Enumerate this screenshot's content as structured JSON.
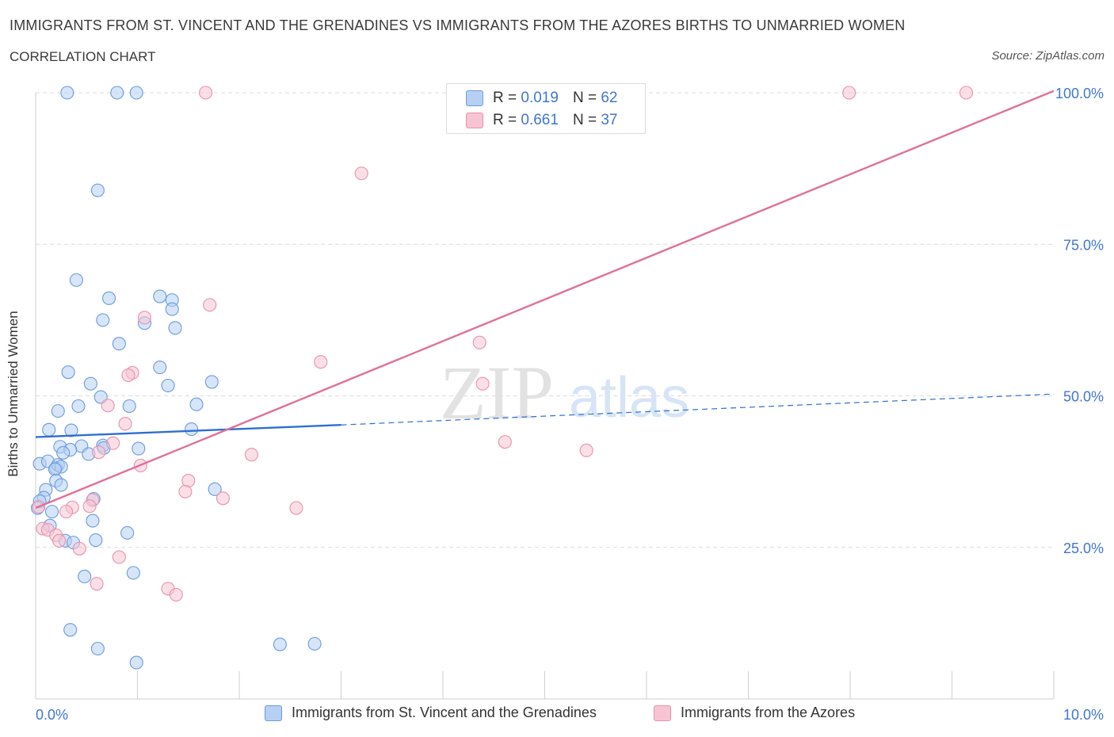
{
  "header": {
    "title": "IMMIGRANTS FROM ST. VINCENT AND THE GRENADINES VS IMMIGRANTS FROM THE AZORES BIRTHS TO UNMARRIED WOMEN",
    "subtitle": "CORRELATION CHART",
    "source": "Source: ZipAtlas.com"
  },
  "colors": {
    "blue_fill": "#b5d0f3",
    "blue_stroke": "#6a9bdc",
    "blue_line": "#2e6fd0",
    "pink_fill": "#f7c4d4",
    "pink_stroke": "#e891ad",
    "pink_line": "#e07098",
    "tick_label": "#3f76d2",
    "grid": "#dcdcdc"
  },
  "legend": {
    "series1": {
      "r_label": "R =",
      "r_value": "0.019",
      "n_label": "N =",
      "n_value": "62"
    },
    "series2": {
      "r_label": "R =",
      "r_value": "0.661",
      "n_label": "N =",
      "n_value": "37"
    }
  },
  "watermark": {
    "zip": "ZIP",
    "atlas": "atlas"
  },
  "chart_data": {
    "type": "scatter",
    "title": "IMMIGRANTS FROM ST. VINCENT AND THE GRENADINES VS IMMIGRANTS FROM THE AZORES BIRTHS TO UNMARRIED WOMEN",
    "xlabel": "",
    "ylabel": "Births to Unmarried Women",
    "xlim": [
      0,
      10
    ],
    "ylim": [
      0,
      100
    ],
    "x_tick_labels": [
      "0.0%",
      "10.0%"
    ],
    "y_tick_values": [
      25,
      50,
      75,
      100
    ],
    "y_tick_labels": [
      "25.0%",
      "50.0%",
      "75.0%",
      "100.0%"
    ],
    "grid": true,
    "series": [
      {
        "name": "Immigrants from St. Vincent and the Grenadines",
        "color": "#6a9bdc",
        "trend": {
          "x0": 0,
          "y0": 43.2,
          "x1": 3.0,
          "y1": 45.2,
          "dashed_to_x": 10,
          "dashed_to_y": 50.3
        },
        "points": [
          [
            0.31,
            100
          ],
          [
            0.8,
            100
          ],
          [
            0.99,
            100
          ],
          [
            0.61,
            83.9
          ],
          [
            0.4,
            69.1
          ],
          [
            0.72,
            66.1
          ],
          [
            1.22,
            66.4
          ],
          [
            1.34,
            65.8
          ],
          [
            0.66,
            62.5
          ],
          [
            1.07,
            62.0
          ],
          [
            1.34,
            64.3
          ],
          [
            1.37,
            61.2
          ],
          [
            0.82,
            58.6
          ],
          [
            0.32,
            53.9
          ],
          [
            1.22,
            54.7
          ],
          [
            0.54,
            52.0
          ],
          [
            1.3,
            51.7
          ],
          [
            1.73,
            52.3
          ],
          [
            0.64,
            49.8
          ],
          [
            0.42,
            48.3
          ],
          [
            0.92,
            48.3
          ],
          [
            1.58,
            48.6
          ],
          [
            0.22,
            47.5
          ],
          [
            0.13,
            44.4
          ],
          [
            0.35,
            44.3
          ],
          [
            1.53,
            44.5
          ],
          [
            0.24,
            41.6
          ],
          [
            0.45,
            41.7
          ],
          [
            0.34,
            41.1
          ],
          [
            0.66,
            41.8
          ],
          [
            0.67,
            41.4
          ],
          [
            1.01,
            41.3
          ],
          [
            0.52,
            40.4
          ],
          [
            0.27,
            40.6
          ],
          [
            0.04,
            38.8
          ],
          [
            0.12,
            39.2
          ],
          [
            0.2,
            38.1
          ],
          [
            0.22,
            38.6
          ],
          [
            0.25,
            38.3
          ],
          [
            0.19,
            37.9
          ],
          [
            0.2,
            36.0
          ],
          [
            0.25,
            35.3
          ],
          [
            0.1,
            34.5
          ],
          [
            0.08,
            33.2
          ],
          [
            1.76,
            34.6
          ],
          [
            0.57,
            33.0
          ],
          [
            0.04,
            32.6
          ],
          [
            0.16,
            30.9
          ],
          [
            0.56,
            29.4
          ],
          [
            0.14,
            28.6
          ],
          [
            0.9,
            27.4
          ],
          [
            0.29,
            26.1
          ],
          [
            0.37,
            25.8
          ],
          [
            0.59,
            26.2
          ],
          [
            0.48,
            20.2
          ],
          [
            0.96,
            20.8
          ],
          [
            0.34,
            11.4
          ],
          [
            0.61,
            8.3
          ],
          [
            0.99,
            6.0
          ],
          [
            2.4,
            9.0
          ],
          [
            2.74,
            9.1
          ],
          [
            0.02,
            31.5
          ]
        ]
      },
      {
        "name": "Immigrants from the Azores",
        "color": "#e891ad",
        "trend": {
          "x0": 0,
          "y0": 31.5,
          "x1": 10,
          "y1": 100.3
        },
        "points": [
          [
            1.67,
            100
          ],
          [
            7.99,
            100
          ],
          [
            9.14,
            100
          ],
          [
            3.2,
            86.7
          ],
          [
            1.71,
            65.0
          ],
          [
            1.07,
            62.9
          ],
          [
            4.36,
            58.8
          ],
          [
            2.8,
            55.6
          ],
          [
            0.95,
            53.8
          ],
          [
            0.91,
            53.4
          ],
          [
            4.39,
            52.0
          ],
          [
            0.71,
            48.4
          ],
          [
            0.88,
            45.4
          ],
          [
            0.76,
            42.2
          ],
          [
            4.61,
            42.4
          ],
          [
            5.41,
            41.0
          ],
          [
            0.62,
            40.7
          ],
          [
            2.12,
            40.3
          ],
          [
            1.03,
            38.5
          ],
          [
            1.5,
            36.0
          ],
          [
            1.47,
            34.2
          ],
          [
            1.84,
            33.1
          ],
          [
            0.56,
            32.8
          ],
          [
            0.53,
            31.8
          ],
          [
            0.36,
            31.6
          ],
          [
            2.56,
            31.5
          ],
          [
            0.3,
            30.9
          ],
          [
            0.03,
            31.7
          ],
          [
            0.07,
            28.1
          ],
          [
            0.12,
            27.9
          ],
          [
            0.2,
            27.0
          ],
          [
            0.23,
            26.1
          ],
          [
            0.43,
            24.8
          ],
          [
            0.82,
            23.4
          ],
          [
            0.6,
            19.0
          ],
          [
            1.3,
            18.2
          ],
          [
            1.38,
            17.2
          ]
        ]
      }
    ]
  },
  "bottom_legend": {
    "item1": "Immigrants from St. Vincent and the Grenadines",
    "item2": "Immigrants from the Azores"
  }
}
